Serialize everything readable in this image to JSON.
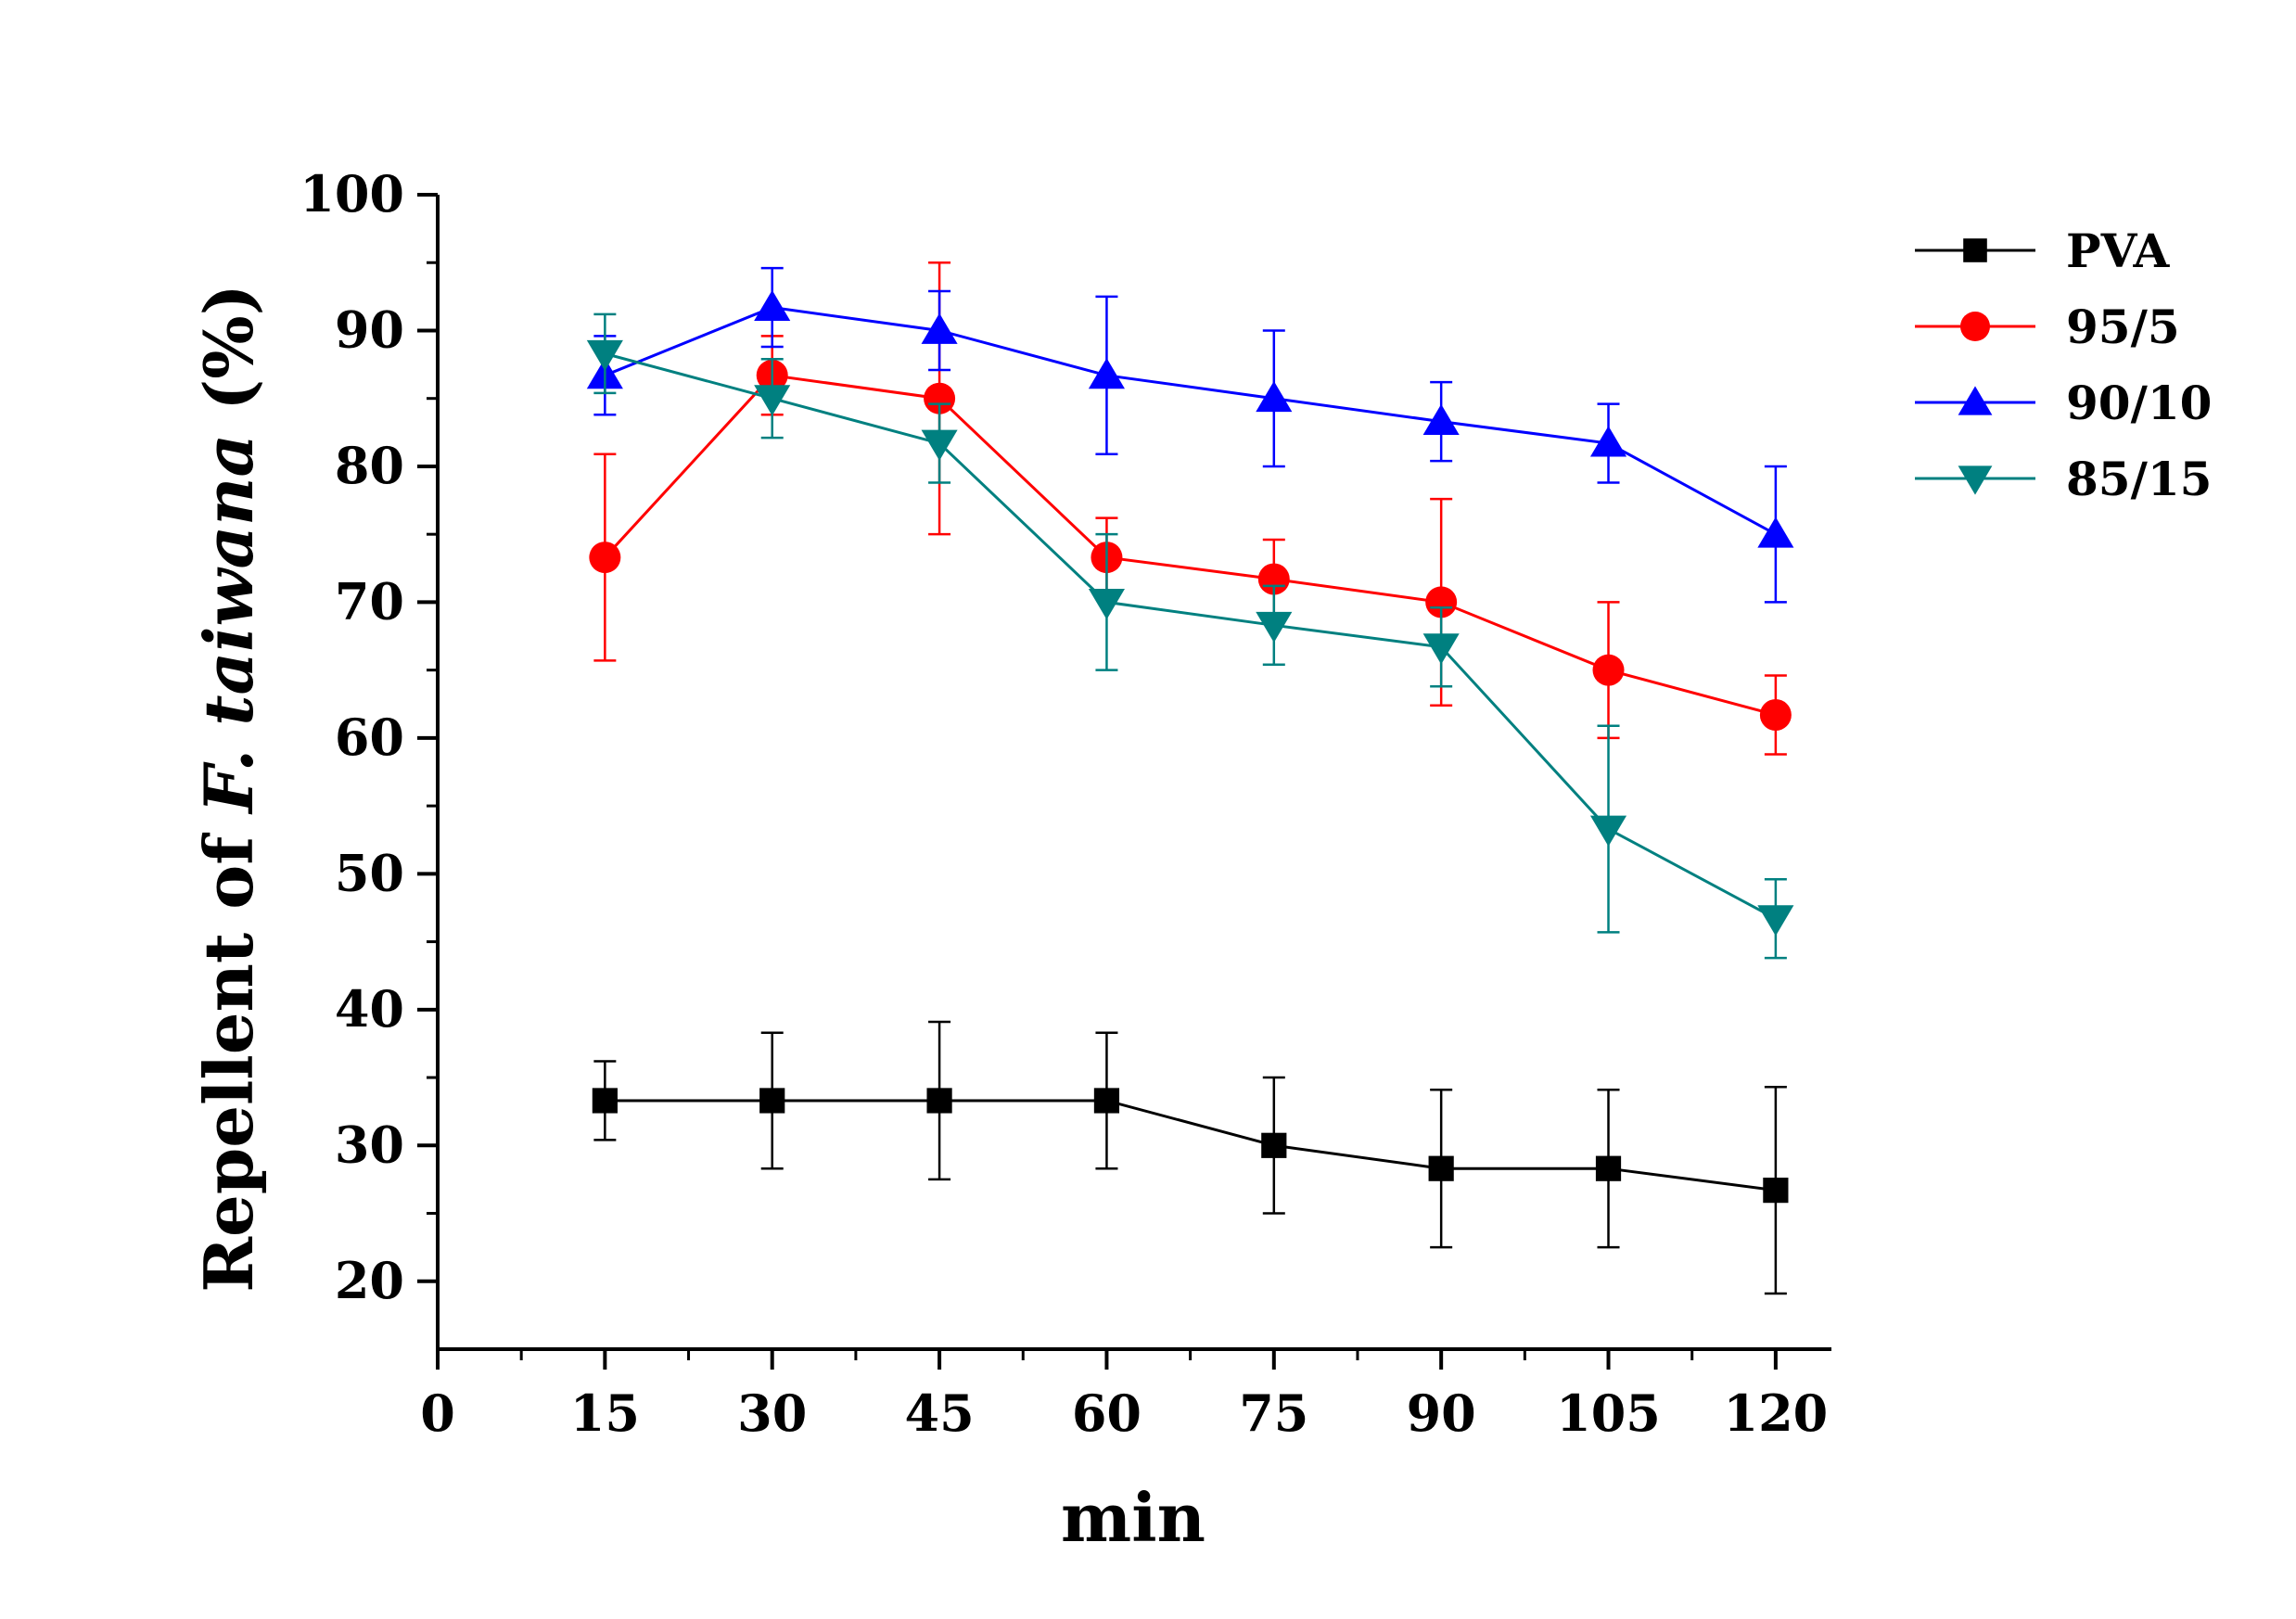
{
  "chart_data": {
    "type": "line",
    "title": "",
    "xlabel": "min",
    "ylabel": {
      "prefix": "Repellent of ",
      "italic": "F. taiwana",
      "suffix": " (%)"
    },
    "xlim": [
      0,
      125
    ],
    "ylim": [
      15,
      100
    ],
    "xticks": [
      0,
      15,
      30,
      45,
      60,
      75,
      90,
      105,
      120
    ],
    "yticks": [
      20,
      30,
      40,
      50,
      60,
      70,
      80,
      90,
      100
    ],
    "legend_position": "top-right",
    "series": [
      {
        "name": "PVA",
        "color": "#000000",
        "marker": "square",
        "x": [
          15,
          30,
          45,
          60,
          75,
          90,
          105,
          120
        ],
        "y": [
          33.3,
          33.3,
          33.3,
          33.3,
          30.0,
          28.3,
          28.3,
          26.7
        ],
        "err": [
          2.9,
          5.0,
          5.8,
          5.0,
          5.0,
          5.8,
          5.8,
          7.6
        ]
      },
      {
        "name": "95/5",
        "color": "#ff0000",
        "marker": "circle",
        "x": [
          15,
          30,
          45,
          60,
          75,
          90,
          105,
          120
        ],
        "y": [
          73.3,
          86.7,
          85.0,
          73.3,
          71.7,
          70.0,
          65.0,
          61.7
        ],
        "err": [
          7.6,
          2.9,
          10.0,
          2.9,
          2.9,
          7.6,
          5.0,
          2.9
        ]
      },
      {
        "name": "90/10",
        "color": "#0000ff",
        "marker": "triangle-up",
        "x": [
          15,
          30,
          45,
          60,
          75,
          90,
          105,
          120
        ],
        "y": [
          86.7,
          91.7,
          90.0,
          86.7,
          85.0,
          83.3,
          81.7,
          75.0
        ],
        "err": [
          2.9,
          2.9,
          2.9,
          5.8,
          5.0,
          2.9,
          2.9,
          5.0
        ]
      },
      {
        "name": "85/15",
        "color": "#008080",
        "marker": "triangle-down",
        "x": [
          15,
          30,
          45,
          60,
          75,
          90,
          105,
          120
        ],
        "y": [
          88.3,
          85.0,
          81.7,
          70.0,
          68.3,
          66.7,
          53.3,
          46.7
        ],
        "err": [
          2.9,
          2.9,
          2.9,
          5.0,
          2.9,
          2.9,
          7.6,
          2.9
        ]
      }
    ]
  }
}
